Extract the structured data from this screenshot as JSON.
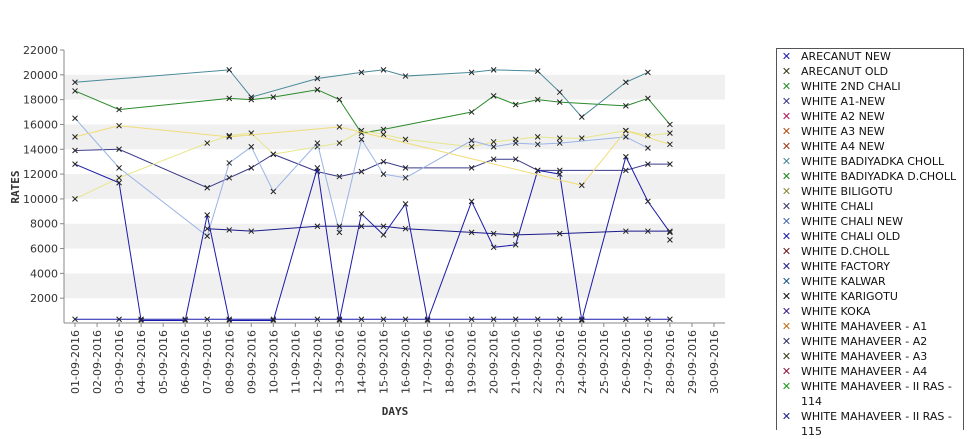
{
  "chart_data": {
    "type": "line",
    "title": "",
    "xlabel": "DAYS",
    "ylabel": "RATES",
    "ylim": [
      0,
      22000
    ],
    "yticks": [
      2000,
      4000,
      6000,
      8000,
      10000,
      12000,
      14000,
      16000,
      18000,
      20000,
      22000
    ],
    "grid": "alternating horizontal bands",
    "legend_position": "right",
    "categories": [
      "01-09-2016",
      "02-09-2016",
      "03-09-2016",
      "04-09-2016",
      "05-09-2016",
      "06-09-2016",
      "07-09-2016",
      "08-09-2016",
      "09-09-2016",
      "10-09-2016",
      "11-09-2016",
      "12-09-2016",
      "13-09-2016",
      "14-09-2016",
      "15-09-2016",
      "16-09-2016",
      "17-09-2016",
      "18-09-2016",
      "19-09-2016",
      "20-09-2016",
      "21-09-2016",
      "22-09-2016",
      "23-09-2016",
      "24-09-2016",
      "25-09-2016",
      "26-09-2016",
      "27-09-2016",
      "28-09-2016",
      "29-09-2016",
      "30-09-2016"
    ],
    "series": [
      {
        "name": "ARECANUT NEW",
        "color": "#1a1ab0",
        "values": [
          300,
          null,
          300,
          300,
          null,
          300,
          300,
          300,
          null,
          300,
          null,
          300,
          300,
          300,
          300,
          300,
          300,
          null,
          300,
          300,
          300,
          300,
          300,
          300,
          null,
          300,
          300,
          300,
          null,
          null
        ]
      },
      {
        "name": "WHITE 2ND CHALI",
        "color": "#2a8a2a",
        "values": [
          18700,
          null,
          17200,
          null,
          null,
          null,
          null,
          18100,
          18000,
          18200,
          null,
          18800,
          18000,
          15300,
          15600,
          null,
          null,
          null,
          17000,
          18300,
          17600,
          18000,
          17800,
          null,
          null,
          17500,
          18100,
          16000,
          null,
          null
        ]
      },
      {
        "name": "WHITE A1-NEW",
        "color": "#3a3a8a",
        "values": [
          13900,
          null,
          14000,
          null,
          null,
          null,
          10900,
          11700,
          12500,
          13600,
          null,
          12200,
          11800,
          12200,
          13000,
          12500,
          null,
          null,
          12500,
          13200,
          13200,
          12300,
          12300,
          null,
          null,
          12300,
          12800,
          12800,
          null,
          null
        ]
      },
      {
        "name": "WHITE BADIYADKA CHOLL",
        "color": "#4a8a9a",
        "values": [
          19400,
          null,
          null,
          null,
          null,
          null,
          null,
          20400,
          18200,
          null,
          null,
          19700,
          null,
          20200,
          20400,
          19900,
          null,
          null,
          20200,
          20400,
          null,
          20300,
          18600,
          16600,
          null,
          19400,
          20200,
          null,
          null,
          null
        ]
      },
      {
        "name": "WHITE BILIGOTU",
        "color": "#e6e68c",
        "values": [
          10000,
          null,
          11700,
          null,
          null,
          null,
          14500,
          15100,
          15300,
          13600,
          null,
          14200,
          14500,
          15500,
          15200,
          14800,
          null,
          null,
          14200,
          14600,
          14800,
          15000,
          14900,
          14900,
          null,
          15500,
          15100,
          15300,
          null,
          null
        ]
      },
      {
        "name": "WHITE CHALI NEW",
        "color": "#9ab4e6",
        "values": [
          16500,
          null,
          12500,
          null,
          null,
          null,
          7000,
          12900,
          14200,
          10600,
          null,
          14500,
          7300,
          14800,
          12000,
          11700,
          null,
          null,
          14700,
          14200,
          14500,
          14400,
          14500,
          null,
          null,
          15000,
          14100,
          null,
          null,
          null
        ]
      },
      {
        "name": "WHITE CHALI OLD",
        "color": "#1a1aaa",
        "values": [
          12800,
          null,
          11300,
          200,
          null,
          200,
          8700,
          200,
          null,
          200,
          null,
          12500,
          200,
          8800,
          7100,
          9600,
          200,
          null,
          9800,
          6100,
          6300,
          12300,
          12000,
          200,
          null,
          13400,
          9800,
          7300,
          null,
          null
        ]
      },
      {
        "name": "WHITE FACTORY",
        "color": "#1a1a8a",
        "values": [
          null,
          null,
          null,
          null,
          null,
          null,
          7600,
          7500,
          7400,
          null,
          null,
          7800,
          7800,
          7800,
          7800,
          7600,
          null,
          null,
          7300,
          7200,
          7100,
          null,
          7200,
          null,
          null,
          7400,
          7400,
          7400,
          null,
          null
        ]
      },
      {
        "name": "WHITE CHALI",
        "color": "#f0dc78",
        "values": [
          15000,
          null,
          15900,
          null,
          null,
          null,
          null,
          15000,
          null,
          null,
          null,
          null,
          15800,
          null,
          null,
          null,
          null,
          null,
          null,
          null,
          null,
          null,
          null,
          11100,
          null,
          15500,
          null,
          14400,
          null,
          null
        ]
      },
      {
        "name": "WHITE MAHAVEER - A2",
        "color": "#333366",
        "values": [
          null,
          null,
          null,
          null,
          null,
          null,
          null,
          null,
          null,
          null,
          null,
          null,
          null,
          null,
          null,
          null,
          null,
          null,
          null,
          null,
          null,
          null,
          null,
          null,
          null,
          null,
          null,
          6700,
          null,
          null
        ]
      }
    ]
  },
  "legend": {
    "items": [
      {
        "label": "ARECANUT NEW",
        "color": "#1a1ab0"
      },
      {
        "label": "ARECANUT OLD",
        "color": "#3a3a1a"
      },
      {
        "label": "WHITE 2ND CHALI",
        "color": "#2a8a2a"
      },
      {
        "label": "WHITE A1-NEW",
        "color": "#3a3a8a"
      },
      {
        "label": "WHITE A2 NEW",
        "color": "#b01a5a"
      },
      {
        "label": "WHITE A3 NEW",
        "color": "#b0501a"
      },
      {
        "label": "WHITE A4 NEW",
        "color": "#a03a1a"
      },
      {
        "label": "WHITE BADIYADKA CHOLL",
        "color": "#4a8a9a"
      },
      {
        "label": "WHITE BADIYADKA D.CHOLL",
        "color": "#1a8a1a"
      },
      {
        "label": "WHITE BILIGOTU",
        "color": "#8a8a3a"
      },
      {
        "label": "WHITE CHALI",
        "color": "#3a3a6a"
      },
      {
        "label": "WHITE CHALI NEW",
        "color": "#4a6ab0"
      },
      {
        "label": "WHITE CHALI OLD",
        "color": "#1a1aaa"
      },
      {
        "label": "WHITE D.CHOLL",
        "color": "#6a1a1a"
      },
      {
        "label": "WHITE FACTORY",
        "color": "#1a1a8a"
      },
      {
        "label": "WHITE KALWAR",
        "color": "#1a5a8a"
      },
      {
        "label": "WHITE KARIGOTU",
        "color": "#111111"
      },
      {
        "label": "WHITE KOKA",
        "color": "#3a1a8a"
      },
      {
        "label": "WHITE MAHAVEER - A1",
        "color": "#c0701a"
      },
      {
        "label": "WHITE MAHAVEER - A2",
        "color": "#333366"
      },
      {
        "label": "WHITE MAHAVEER - A3",
        "color": "#3a3a1a"
      },
      {
        "label": "WHITE MAHAVEER - A4",
        "color": "#8a1a3a"
      },
      {
        "label": "WHITE MAHAVEER - II RAS - 114",
        "color": "#1a9a1a"
      },
      {
        "label": "WHITE MAHAVEER - II RAS - 115",
        "color": "#1a1a8a"
      }
    ]
  }
}
